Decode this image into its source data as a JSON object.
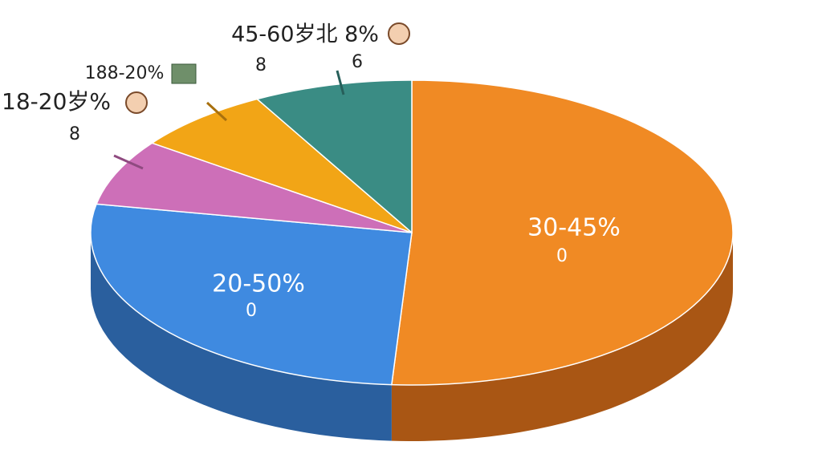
{
  "chart_data": {
    "type": "pie3d",
    "categories": [
      "30-45%",
      "20-50%",
      "18-20岁%",
      "188-20%",
      "45-60岁北 8%"
    ],
    "values": [
      51,
      27,
      7,
      7,
      8
    ],
    "colors": [
      "#f08a24",
      "#3f8ae0",
      "#cd6fb8",
      "#f2a516",
      "#3a8c84"
    ],
    "side_colors": [
      "#a95614",
      "#2a5f9e",
      "#8f4a80",
      "#a8700e",
      "#275f5a"
    ],
    "subtexts": [
      [
        "0"
      ],
      [
        "0"
      ],
      [
        "8"
      ],
      [],
      [
        "8",
        "6"
      ]
    ]
  }
}
